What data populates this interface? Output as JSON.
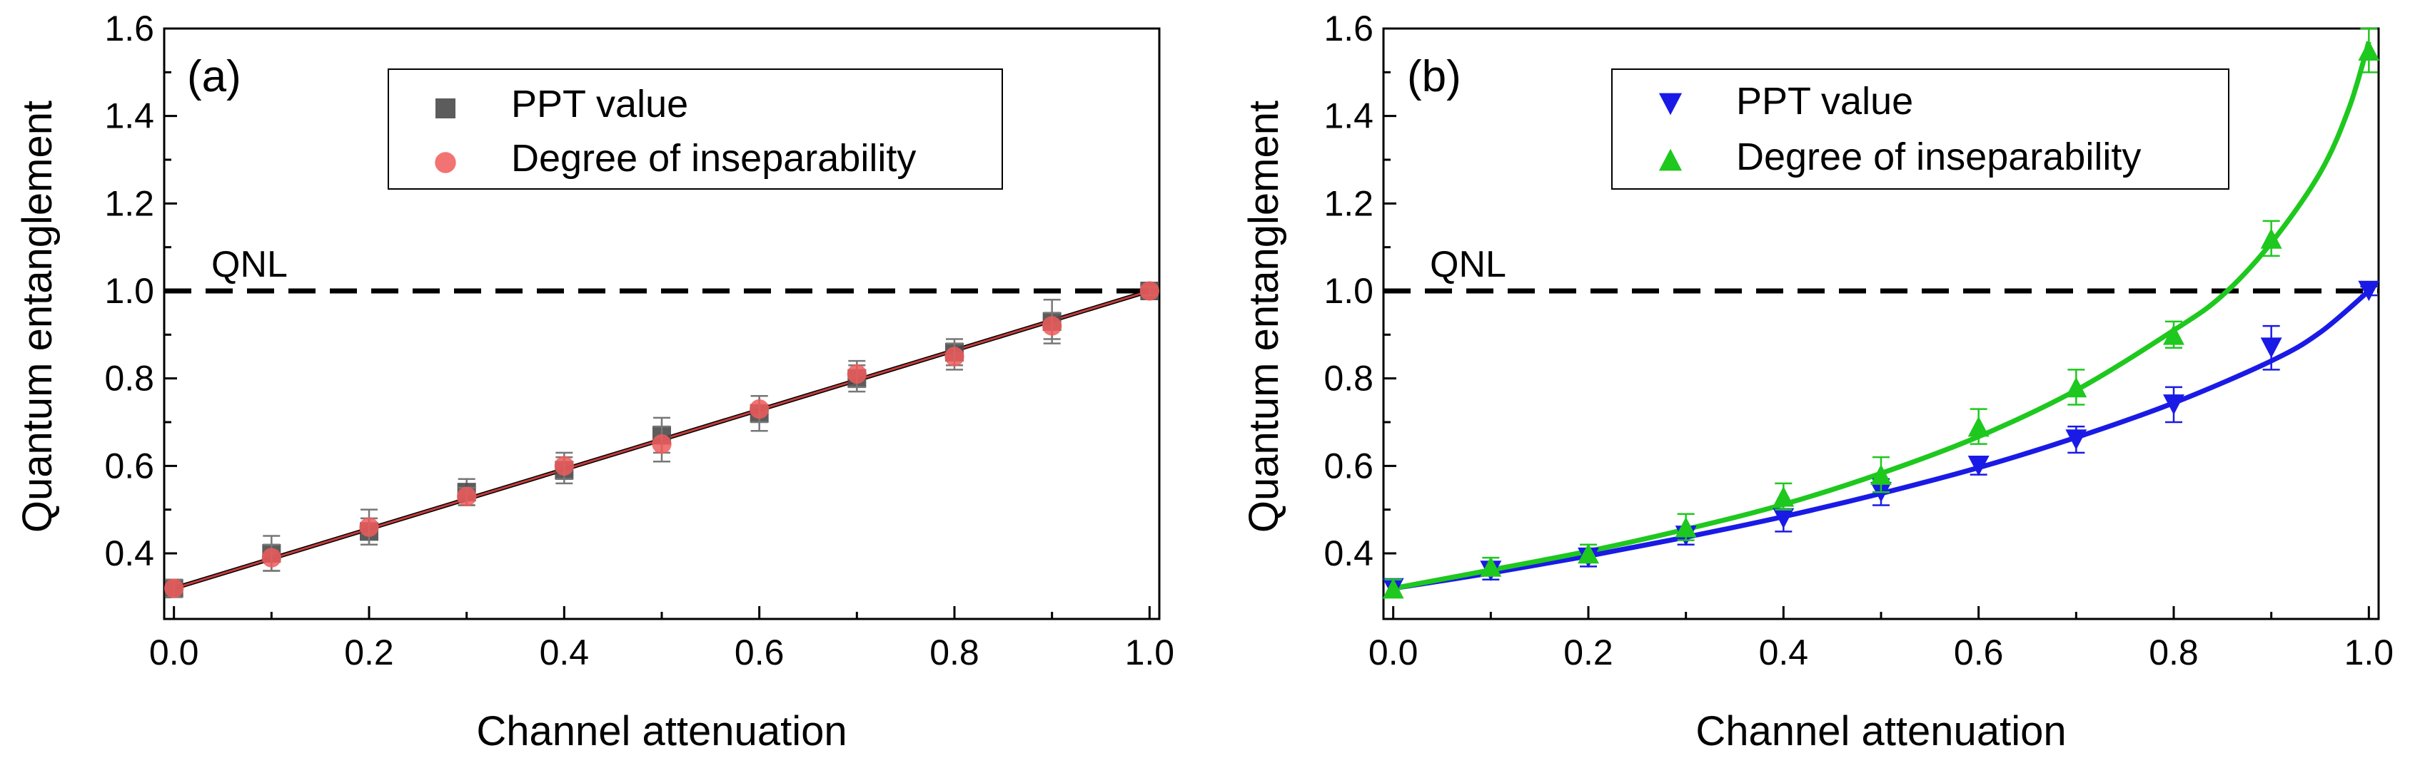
{
  "chart_data": [
    {
      "type": "scatter",
      "panel_label": "(a)",
      "xlabel": "Channel attenuation",
      "ylabel": "Quantum entanglement",
      "xlim": [
        -0.01,
        1.01
      ],
      "ylim": [
        0.25,
        1.6
      ],
      "x_ticks": [
        0.0,
        0.2,
        0.4,
        0.6,
        0.8,
        1.0
      ],
      "y_ticks": [
        0.4,
        0.6,
        0.8,
        1.0,
        1.2,
        1.4,
        1.6
      ],
      "x_tick_labels": [
        "0.0",
        "0.2",
        "0.4",
        "0.6",
        "0.8",
        "1.0"
      ],
      "y_tick_labels": [
        "0.4",
        "0.6",
        "0.8",
        "1.0",
        "1.2",
        "1.4",
        "1.6"
      ],
      "legend_position": "top-right",
      "reference_line": {
        "label": "QNL",
        "y": 1.0,
        "style": "dashed",
        "color": "#000000"
      },
      "series": [
        {
          "name": "PPT value",
          "marker": "square",
          "color": "#4a4a4a",
          "x": [
            0.0,
            0.1,
            0.2,
            0.3,
            0.4,
            0.5,
            0.6,
            0.7,
            0.8,
            0.9,
            1.0
          ],
          "y": [
            0.32,
            0.4,
            0.45,
            0.54,
            0.59,
            0.67,
            0.72,
            0.8,
            0.86,
            0.93,
            1.0
          ],
          "error": [
            0.02,
            0.04,
            0.03,
            0.03,
            0.03,
            0.04,
            0.04,
            0.03,
            0.03,
            0.05,
            0.01
          ],
          "fit": {
            "x_start": 0.0,
            "x_end": 1.0,
            "y_start": 0.32,
            "y_end": 1.0,
            "color": "#000000"
          }
        },
        {
          "name": "Degree of inseparability",
          "marker": "circle",
          "color": "#f05a5a",
          "x": [
            0.0,
            0.1,
            0.2,
            0.3,
            0.4,
            0.5,
            0.6,
            0.7,
            0.8,
            0.9,
            1.0
          ],
          "y": [
            0.32,
            0.39,
            0.46,
            0.53,
            0.6,
            0.65,
            0.73,
            0.81,
            0.85,
            0.92,
            1.0
          ],
          "error": [
            0.02,
            0.03,
            0.04,
            0.02,
            0.03,
            0.04,
            0.03,
            0.03,
            0.03,
            0.03,
            0.01
          ],
          "fit": {
            "x_start": 0.0,
            "x_end": 1.0,
            "y_start": 0.32,
            "y_end": 1.0,
            "color": "#c43c3c"
          }
        }
      ]
    },
    {
      "type": "scatter",
      "panel_label": "(b)",
      "xlabel": "Channel attenuation",
      "ylabel": "Quantum entanglement",
      "xlim": [
        -0.01,
        1.01
      ],
      "ylim": [
        0.25,
        1.6
      ],
      "x_ticks": [
        0.0,
        0.2,
        0.4,
        0.6,
        0.8,
        1.0
      ],
      "y_ticks": [
        0.4,
        0.6,
        0.8,
        1.0,
        1.2,
        1.4,
        1.6
      ],
      "x_tick_labels": [
        "0.0",
        "0.2",
        "0.4",
        "0.6",
        "0.8",
        "1.0"
      ],
      "y_tick_labels": [
        "0.4",
        "0.6",
        "0.8",
        "1.0",
        "1.2",
        "1.4",
        "1.6"
      ],
      "legend_position": "top-right",
      "reference_line": {
        "label": "QNL",
        "y": 1.0,
        "style": "dashed",
        "color": "#000000"
      },
      "series": [
        {
          "name": "PPT value",
          "marker": "triangle-down",
          "color": "#1a1ae6",
          "x": [
            0.0,
            0.1,
            0.2,
            0.3,
            0.4,
            0.5,
            0.6,
            0.7,
            0.8,
            0.9,
            1.0
          ],
          "y": [
            0.32,
            0.36,
            0.39,
            0.44,
            0.48,
            0.54,
            0.6,
            0.66,
            0.74,
            0.87,
            1.0
          ],
          "error": [
            0.02,
            0.02,
            0.02,
            0.02,
            0.03,
            0.03,
            0.02,
            0.03,
            0.04,
            0.05,
            0.01
          ],
          "fit": {
            "color": "#1a1ae6",
            "x": [
              0.0,
              0.1,
              0.2,
              0.3,
              0.4,
              0.5,
              0.6,
              0.7,
              0.8,
              0.9,
              0.95,
              1.0
            ],
            "y": [
              0.32,
              0.355,
              0.394,
              0.437,
              0.484,
              0.537,
              0.596,
              0.665,
              0.744,
              0.84,
              0.905,
              1.0
            ]
          }
        },
        {
          "name": "Degree of inseparability",
          "marker": "triangle-up",
          "color": "#1ec81e",
          "x": [
            0.0,
            0.1,
            0.2,
            0.3,
            0.4,
            0.5,
            0.6,
            0.7,
            0.8,
            0.9,
            1.0
          ],
          "y": [
            0.32,
            0.37,
            0.4,
            0.46,
            0.53,
            0.58,
            0.69,
            0.78,
            0.9,
            1.12,
            1.55
          ],
          "error": [
            0.02,
            0.02,
            0.02,
            0.03,
            0.03,
            0.04,
            0.04,
            0.04,
            0.03,
            0.04,
            0.05
          ],
          "fit": {
            "color": "#1ec81e",
            "x": [
              0.0,
              0.1,
              0.2,
              0.3,
              0.4,
              0.5,
              0.6,
              0.7,
              0.8,
              0.85,
              0.9,
              0.95,
              0.98,
              1.0
            ],
            "y": [
              0.32,
              0.362,
              0.405,
              0.455,
              0.512,
              0.583,
              0.667,
              0.773,
              0.91,
              0.99,
              1.11,
              1.27,
              1.42,
              1.57
            ]
          }
        }
      ]
    }
  ]
}
